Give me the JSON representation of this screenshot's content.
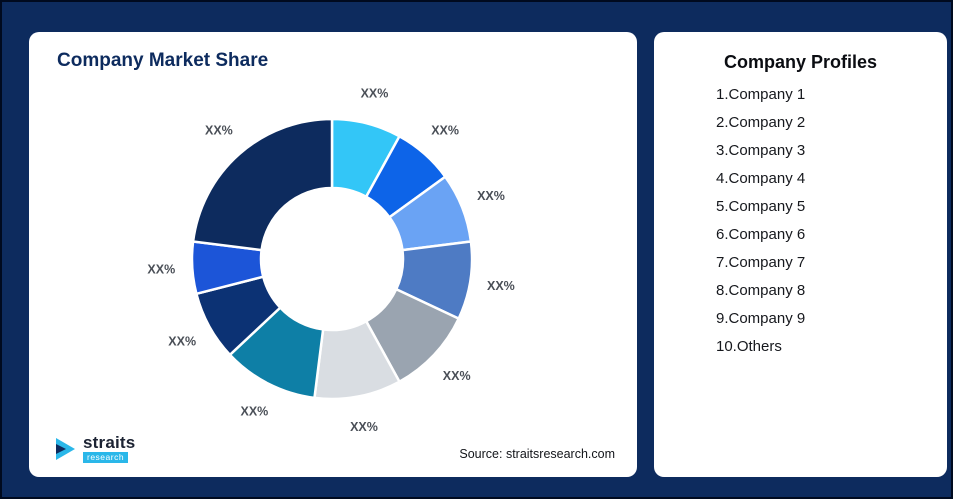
{
  "left_panel": {
    "title": "Company Market Share",
    "source": "Source: straitsresearch.com"
  },
  "logo": {
    "name": "straits",
    "sub": "research"
  },
  "right_panel": {
    "title": "Company Profiles",
    "items": [
      "1.Company 1",
      "2.Company 2",
      "3.Company 3",
      "4.Company 4",
      "5.Company 5",
      "6.Company 6",
      "7.Company 7",
      "8.Company 8",
      "9.Company 9",
      "10.Others"
    ]
  },
  "chart_data": {
    "type": "pie",
    "subtype": "donut",
    "title": "Company Market Share",
    "categories": [
      "Company 1",
      "Company 2",
      "Company 3",
      "Company 4",
      "Company 5",
      "Company 6",
      "Company 7",
      "Company 8",
      "Company 9",
      "Others"
    ],
    "values": [
      8,
      7,
      8,
      9,
      10,
      10,
      11,
      8,
      6,
      23
    ],
    "labels": [
      "XX%",
      "XX%",
      "XX%",
      "XX%",
      "XX%",
      "XX%",
      "XX%",
      "XX%",
      "XX%",
      "XX%"
    ],
    "colors": [
      "#33c6f7",
      "#0d64e8",
      "#6aa3f4",
      "#4e7bc4",
      "#9aa4b0",
      "#d9dde2",
      "#0e7fa6",
      "#0c3274",
      "#1c55d8",
      "#0d2b5e"
    ],
    "legend_position": "none",
    "grid": false,
    "start_angle_deg": -90,
    "direction": "clockwise"
  }
}
